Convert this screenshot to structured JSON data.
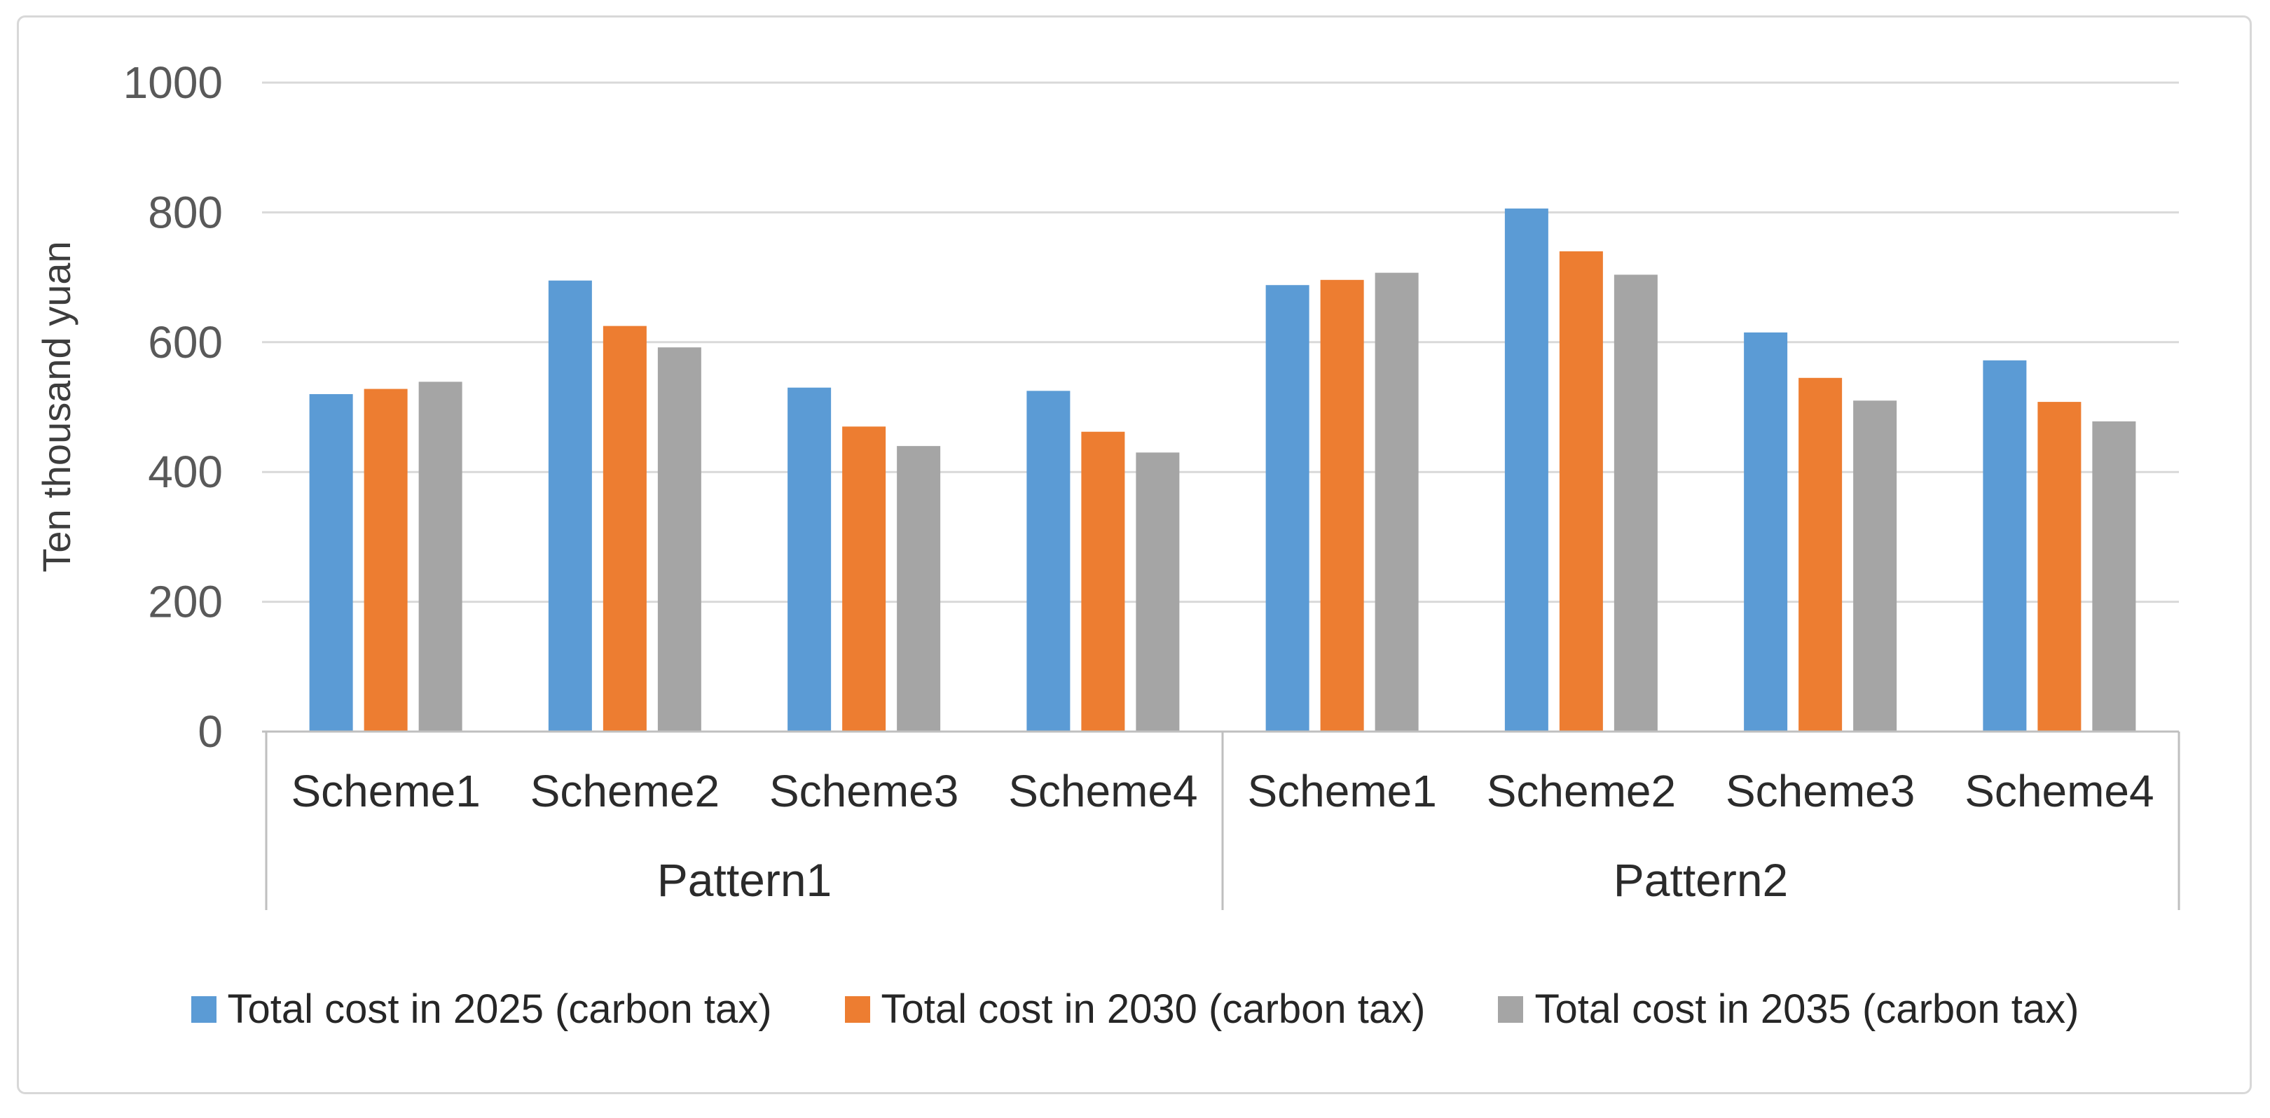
{
  "chart_data": {
    "type": "bar",
    "title": "",
    "ylabel": "Ten thousand yuan",
    "xlabel": "",
    "ylim": [
      0,
      1000
    ],
    "yticks": [
      0,
      200,
      400,
      600,
      800,
      1000
    ],
    "grid": "horizontal",
    "legend_position": "bottom",
    "groups": [
      {
        "label": "Pattern1",
        "categories": [
          "Scheme1",
          "Scheme2",
          "Scheme3",
          "Scheme4"
        ]
      },
      {
        "label": "Pattern2",
        "categories": [
          "Scheme1",
          "Scheme2",
          "Scheme3",
          "Scheme4"
        ]
      }
    ],
    "series": [
      {
        "key": "2025",
        "name": "Total cost in 2025 (carbon tax)",
        "color": "#5B9BD5",
        "values": [
          520,
          695,
          530,
          525,
          688,
          806,
          615,
          572
        ]
      },
      {
        "key": "2030",
        "name": "Total cost in 2030 (carbon tax)",
        "color": "#ED7D31",
        "values": [
          528,
          625,
          470,
          462,
          696,
          740,
          545,
          508
        ]
      },
      {
        "key": "2035",
        "name": "Total cost in 2035 (carbon tax)",
        "color": "#A5A5A5",
        "values": [
          539,
          592,
          440,
          430,
          707,
          704,
          510,
          478
        ]
      }
    ]
  },
  "palette": {
    "gridline": "#D9D9D9",
    "axis_line": "#BFBFBF",
    "separator_line": "#BFBFBF",
    "tick_text": "#595959",
    "category_text": "#2B2B2B",
    "border": "#D8D8D8",
    "background": "#FFFFFF"
  }
}
